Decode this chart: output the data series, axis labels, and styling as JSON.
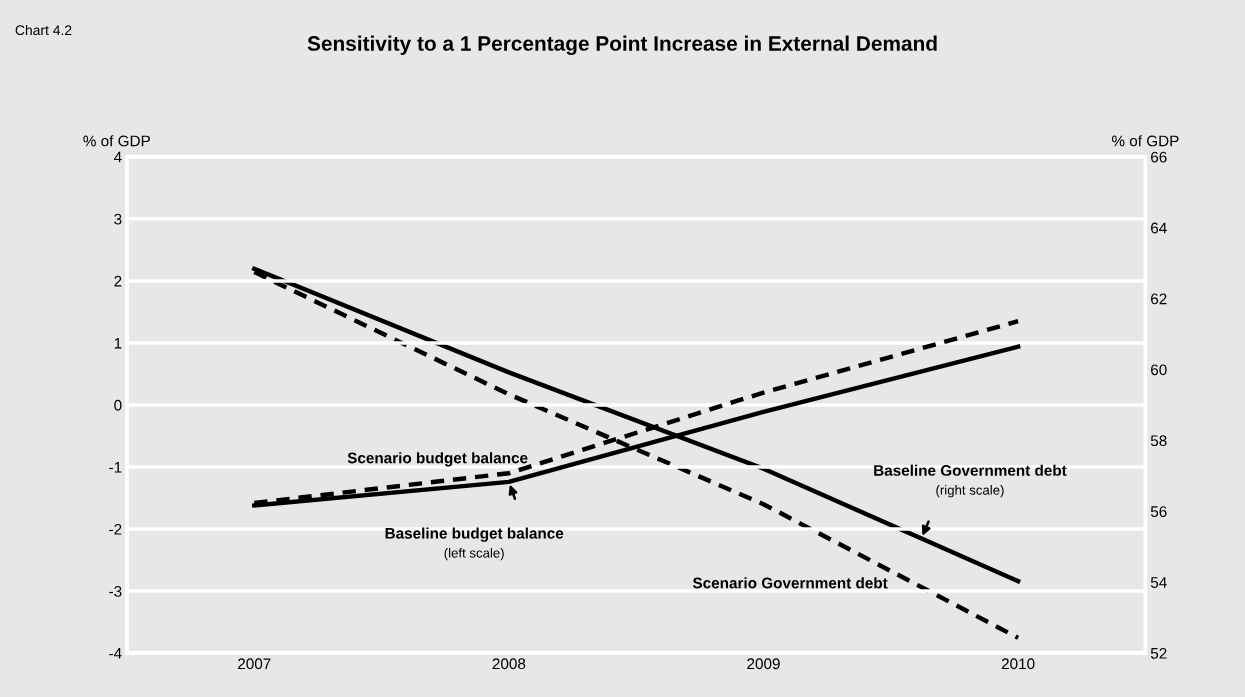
{
  "chart_data": {
    "type": "line",
    "title": "Sensitivity to a 1 Percentage Point Increase in External Demand",
    "ylabel": "% of GDP",
    "y2label": "% of GDP",
    "categories": [
      "2007",
      "2008",
      "2009",
      "2010"
    ],
    "series": [
      {
        "name": "Baseline budget balance",
        "color": "#000000",
        "line_style": "solid",
        "values": [
          -1.62,
          -1.24,
          -0.11,
          0.94
        ]
      },
      {
        "name": "Scenario budget balance",
        "color": "#000000",
        "line_style": "dashed",
        "values": [
          -1.58,
          -1.1,
          0.2,
          1.35
        ]
      },
      {
        "name": "Baseline Government debt",
        "color": "#000000",
        "line_style": "solid",
        "axis": "y2",
        "values": [
          62.84,
          59.92,
          57.2,
          54.03
        ]
      },
      {
        "name": "Scenario Government debt",
        "color": "#000000",
        "line_style": "dashed",
        "axis": "y2",
        "values": [
          62.75,
          59.3,
          56.2,
          52.43
        ]
      }
    ],
    "ylim": [
      -4,
      4
    ],
    "yticks": [
      -4,
      -3,
      -2,
      -1,
      0,
      1,
      2,
      3,
      4
    ],
    "y2lim": [
      52,
      66
    ],
    "y2ticks": [
      52,
      54,
      56,
      58,
      60,
      62,
      64,
      66
    ],
    "grid": "y",
    "legend": false,
    "marker": "none",
    "annotations": [
      "Chart 4.2",
      "(left scale)",
      "(right scale)"
    ]
  }
}
